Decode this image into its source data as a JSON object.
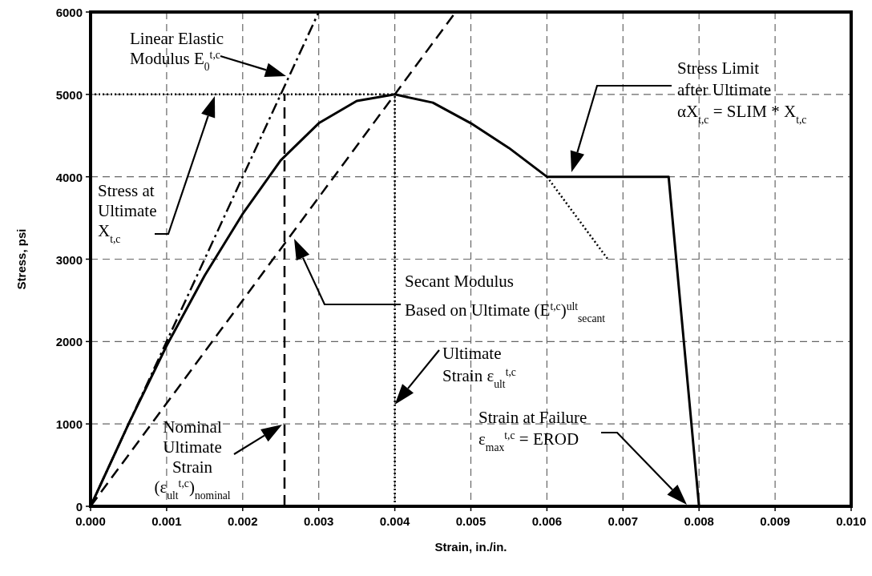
{
  "chart_data": {
    "type": "line",
    "xlabel": "Strain, in./in.",
    "ylabel": "Stress, psi",
    "xlim": [
      0,
      0.01
    ],
    "ylim": [
      0,
      6000
    ],
    "xticks": [
      {
        "value": 0,
        "label": "0.000"
      },
      {
        "value": 0.001,
        "label": "0.001"
      },
      {
        "value": 0.002,
        "label": "0.002"
      },
      {
        "value": 0.003,
        "label": "0.003"
      },
      {
        "value": 0.004,
        "label": "0.004"
      },
      {
        "value": 0.005,
        "label": "0.005"
      },
      {
        "value": 0.006,
        "label": "0.006"
      },
      {
        "value": 0.007,
        "label": "0.007"
      },
      {
        "value": 0.008,
        "label": "0.008"
      },
      {
        "value": 0.009,
        "label": "0.009"
      },
      {
        "value": 0.01,
        "label": "0.010"
      }
    ],
    "yticks": [
      0,
      1000,
      2000,
      3000,
      4000,
      5000,
      6000
    ],
    "grid": true,
    "marker": "none",
    "series": [
      {
        "color": "#000000",
        "line_style": "solid",
        "x": [
          0,
          0.0005,
          0.001,
          0.0015,
          0.002,
          0.0025,
          0.003,
          0.0035,
          0.004,
          0.0045,
          0.005,
          0.0055,
          0.006,
          0.0076,
          0.008
        ],
        "values": [
          0,
          1000,
          1950,
          2800,
          3550,
          4200,
          4650,
          4920,
          5000,
          4900,
          4650,
          4350,
          4000,
          4000,
          0
        ]
      },
      {
        "color": "#000000",
        "line_style": "dashdot",
        "x": [
          0,
          0.003
        ],
        "values": [
          0,
          6000
        ]
      },
      {
        "color": "#000000",
        "line_style": "dashed",
        "x": [
          0,
          0.0048
        ],
        "values": [
          0,
          6000
        ]
      },
      {
        "color": "#000000",
        "line_style": "dotted",
        "x": [
          0.006,
          0.0068
        ],
        "values": [
          4000,
          3000
        ]
      },
      {
        "color": "#000000",
        "line_style": "dotted",
        "x": [
          0,
          0.004
        ],
        "values": [
          5000,
          5000
        ]
      },
      {
        "color": "#000000",
        "line_style": "dotted",
        "x": [
          0.004,
          0.004
        ],
        "values": [
          0,
          5000
        ]
      },
      {
        "color": "#000000",
        "line_style": "dashed",
        "x": [
          0.00255,
          0.00255
        ],
        "values": [
          0,
          5000
        ]
      }
    ],
    "annotations": [
      "Linear Elastic\nModulus  E$_{0}$$^{t,c}$",
      "Stress at\nUltimate\nX$_{t,c}$",
      "Secant Modulus\nBased on Ultimate  (E$^{t,c}$)$^{ult}$$_{secant}$",
      {
        "text": "Ultimate\nStrain ε$_{ult}$$^{t,c}$",
        "x": 0.004,
        "y": 1235
      },
      "Nominal\nUltimate\nStrain\n(ε$_{ult}$$^{t,c}$)$_{nominal}$",
      "Stress Limit\nafter Ultimate\nαX$_{t,c}$ = SLIM * X$_{t,c}$",
      "Strain at Failure\nε$_{max}$$^{t,c}$ = EROD"
    ]
  }
}
